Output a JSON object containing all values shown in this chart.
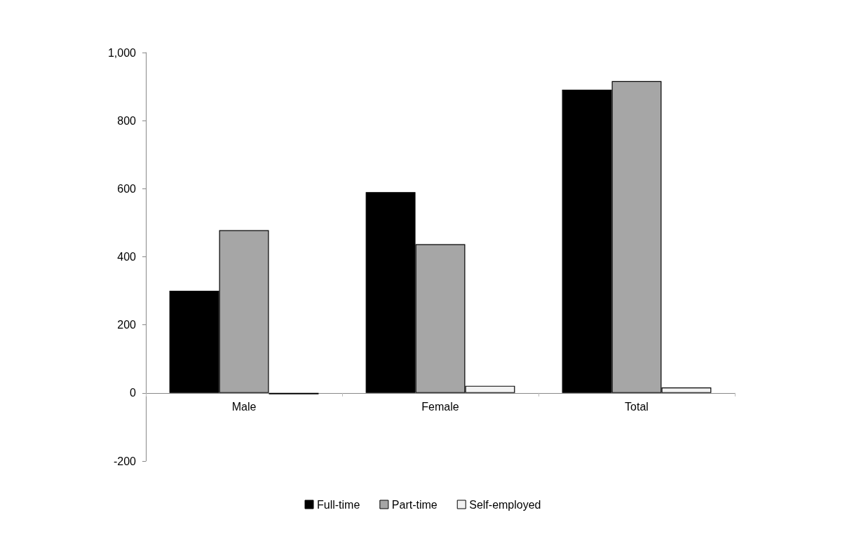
{
  "chart_data": {
    "type": "bar",
    "categories": [
      "Male",
      "Female",
      "Total"
    ],
    "series": [
      {
        "name": "Full-time",
        "color": "#000000",
        "values": [
          300,
          590,
          891
        ]
      },
      {
        "name": "Part-time",
        "color": "#a6a6a6",
        "values": [
          478,
          437,
          916
        ]
      },
      {
        "name": "Self-employed",
        "color": "#f2f2f2",
        "values": [
          -4,
          21,
          16
        ]
      }
    ],
    "ylim": [
      -200,
      1000
    ],
    "yticks": [
      -200,
      0,
      200,
      400,
      600,
      800,
      {
        "value": 1000,
        "label": "1,000"
      }
    ],
    "grid": false,
    "legend": "bottom"
  }
}
